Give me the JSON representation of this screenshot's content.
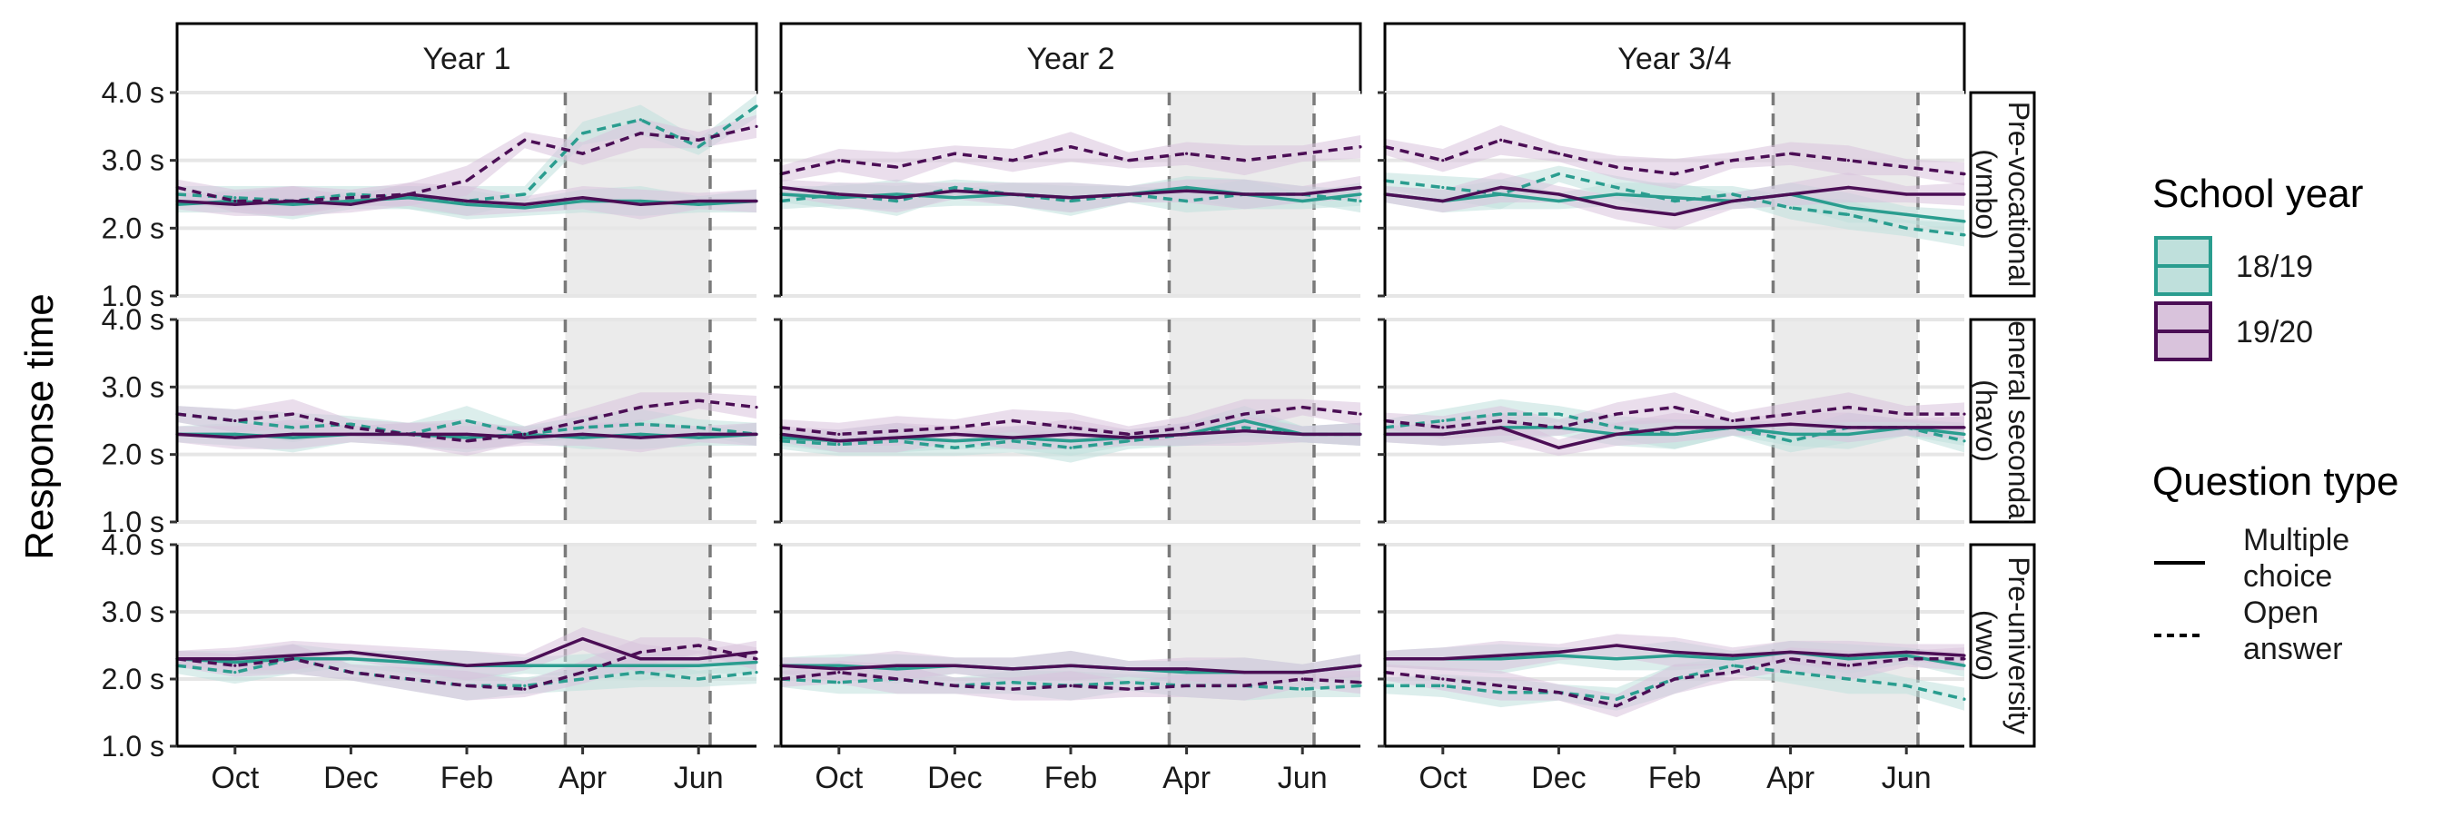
{
  "chart_data": {
    "type": "line",
    "ylabel": "Response time",
    "ylim": [
      1.0,
      4.0
    ],
    "y_ticks": [
      "1.0 s",
      "2.0 s",
      "3.0 s",
      "4.0 s"
    ],
    "x_ticks": [
      "Oct",
      "Dec",
      "Feb",
      "Apr",
      "Jun"
    ],
    "x_tick_positions": [
      1.5,
      3.5,
      5.5,
      7.5,
      9.5
    ],
    "x_domain": [
      0.5,
      10.5
    ],
    "covid_window": [
      7.2,
      9.7
    ],
    "grid": true,
    "legend_placement": "right",
    "columns": [
      "Year 1",
      "Year 2",
      "Year 3/4"
    ],
    "rows": [
      "Pre-vocational\n(vmbo)",
      "General secondary\n(havo)",
      "Pre-university\n(vwo)"
    ],
    "legend": {
      "school_year": {
        "title": "School year",
        "items": [
          {
            "label": "18/19",
            "color": "#2a9d8f"
          },
          {
            "label": "19/20",
            "color": "#4b0e55"
          }
        ]
      },
      "question_type": {
        "title": "Question type",
        "items": [
          {
            "label": "Multiple choice",
            "linestyle": "solid"
          },
          {
            "label": "Open answer",
            "linestyle": "dashed"
          }
        ]
      }
    },
    "colors": {
      "18/19": "#2a9d8f",
      "19/20": "#4b0e55",
      "band_18/19": "#bfe0dc",
      "band_19/20": "#d9c3dc",
      "shade": "#ebebeb"
    },
    "x": [
      0.5,
      1.5,
      2.5,
      3.5,
      4.5,
      5.5,
      6.5,
      7.5,
      8.5,
      9.5,
      10.5
    ],
    "panels": [
      {
        "row": 0,
        "col": 0,
        "series": [
          {
            "year": "18/19",
            "qtype": "Multiple choice",
            "values": [
              2.35,
              2.4,
              2.35,
              2.4,
              2.45,
              2.35,
              2.3,
              2.4,
              2.4,
              2.35,
              2.4
            ]
          },
          {
            "year": "18/19",
            "qtype": "Open answer",
            "values": [
              2.5,
              2.45,
              2.4,
              2.5,
              2.45,
              2.4,
              2.5,
              3.4,
              3.6,
              3.2,
              3.8
            ]
          },
          {
            "year": "19/20",
            "qtype": "Multiple choice",
            "values": [
              2.4,
              2.35,
              2.4,
              2.35,
              2.5,
              2.4,
              2.35,
              2.45,
              2.35,
              2.4,
              2.4
            ]
          },
          {
            "year": "19/20",
            "qtype": "Open answer",
            "values": [
              2.6,
              2.4,
              2.4,
              2.45,
              2.5,
              2.7,
              3.3,
              3.1,
              3.4,
              3.3,
              3.5
            ]
          }
        ]
      },
      {
        "row": 0,
        "col": 1,
        "series": [
          {
            "year": "18/19",
            "qtype": "Multiple choice",
            "values": [
              2.5,
              2.45,
              2.5,
              2.45,
              2.5,
              2.45,
              2.5,
              2.6,
              2.5,
              2.4,
              2.5
            ]
          },
          {
            "year": "18/19",
            "qtype": "Open answer",
            "values": [
              2.4,
              2.5,
              2.4,
              2.6,
              2.5,
              2.4,
              2.5,
              2.4,
              2.5,
              2.5,
              2.4
            ]
          },
          {
            "year": "19/20",
            "qtype": "Multiple choice",
            "values": [
              2.6,
              2.5,
              2.45,
              2.55,
              2.5,
              2.45,
              2.5,
              2.55,
              2.5,
              2.5,
              2.6
            ]
          },
          {
            "year": "19/20",
            "qtype": "Open answer",
            "values": [
              2.8,
              3.0,
              2.9,
              3.1,
              3.0,
              3.2,
              3.0,
              3.1,
              3.0,
              3.1,
              3.2
            ]
          }
        ]
      },
      {
        "row": 0,
        "col": 2,
        "series": [
          {
            "year": "18/19",
            "qtype": "Multiple choice",
            "values": [
              2.5,
              2.4,
              2.5,
              2.4,
              2.5,
              2.45,
              2.4,
              2.5,
              2.3,
              2.2,
              2.1
            ]
          },
          {
            "year": "18/19",
            "qtype": "Open answer",
            "values": [
              2.7,
              2.6,
              2.5,
              2.8,
              2.6,
              2.4,
              2.5,
              2.3,
              2.2,
              2.0,
              1.9
            ]
          },
          {
            "year": "19/20",
            "qtype": "Multiple choice",
            "values": [
              2.5,
              2.4,
              2.6,
              2.5,
              2.3,
              2.2,
              2.4,
              2.5,
              2.6,
              2.5,
              2.5
            ]
          },
          {
            "year": "19/20",
            "qtype": "Open answer",
            "values": [
              3.2,
              3.0,
              3.3,
              3.1,
              2.9,
              2.8,
              3.0,
              3.1,
              3.0,
              2.9,
              2.8
            ]
          }
        ]
      },
      {
        "row": 1,
        "col": 0,
        "series": [
          {
            "year": "18/19",
            "qtype": "Multiple choice",
            "values": [
              2.3,
              2.3,
              2.25,
              2.3,
              2.3,
              2.25,
              2.3,
              2.25,
              2.3,
              2.25,
              2.3
            ]
          },
          {
            "year": "18/19",
            "qtype": "Open answer",
            "values": [
              2.6,
              2.5,
              2.4,
              2.45,
              2.3,
              2.5,
              2.3,
              2.4,
              2.45,
              2.4,
              2.3
            ]
          },
          {
            "year": "19/20",
            "qtype": "Multiple choice",
            "values": [
              2.3,
              2.25,
              2.3,
              2.3,
              2.3,
              2.3,
              2.25,
              2.3,
              2.25,
              2.3,
              2.3
            ]
          },
          {
            "year": "19/20",
            "qtype": "Open answer",
            "values": [
              2.6,
              2.5,
              2.6,
              2.4,
              2.3,
              2.2,
              2.3,
              2.5,
              2.7,
              2.8,
              2.7
            ]
          }
        ]
      },
      {
        "row": 1,
        "col": 1,
        "series": [
          {
            "year": "18/19",
            "qtype": "Multiple choice",
            "values": [
              2.25,
              2.2,
              2.25,
              2.2,
              2.25,
              2.2,
              2.25,
              2.3,
              2.5,
              2.3,
              2.3
            ]
          },
          {
            "year": "18/19",
            "qtype": "Open answer",
            "values": [
              2.2,
              2.15,
              2.2,
              2.1,
              2.2,
              2.1,
              2.2,
              2.3,
              2.4,
              2.3,
              2.3
            ]
          },
          {
            "year": "19/20",
            "qtype": "Multiple choice",
            "values": [
              2.3,
              2.2,
              2.25,
              2.3,
              2.25,
              2.3,
              2.25,
              2.3,
              2.35,
              2.3,
              2.3
            ]
          },
          {
            "year": "19/20",
            "qtype": "Open answer",
            "values": [
              2.4,
              2.3,
              2.35,
              2.4,
              2.5,
              2.4,
              2.3,
              2.4,
              2.6,
              2.7,
              2.6
            ]
          }
        ]
      },
      {
        "row": 1,
        "col": 2,
        "series": [
          {
            "year": "18/19",
            "qtype": "Multiple choice",
            "values": [
              2.3,
              2.3,
              2.4,
              2.4,
              2.3,
              2.3,
              2.4,
              2.3,
              2.3,
              2.4,
              2.3
            ]
          },
          {
            "year": "18/19",
            "qtype": "Open answer",
            "values": [
              2.4,
              2.5,
              2.6,
              2.6,
              2.4,
              2.3,
              2.4,
              2.2,
              2.4,
              2.4,
              2.2
            ]
          },
          {
            "year": "19/20",
            "qtype": "Multiple choice",
            "values": [
              2.3,
              2.3,
              2.4,
              2.1,
              2.3,
              2.4,
              2.4,
              2.45,
              2.4,
              2.4,
              2.4
            ]
          },
          {
            "year": "19/20",
            "qtype": "Open answer",
            "values": [
              2.5,
              2.4,
              2.5,
              2.4,
              2.6,
              2.7,
              2.5,
              2.6,
              2.7,
              2.6,
              2.6
            ]
          }
        ]
      },
      {
        "row": 2,
        "col": 0,
        "series": [
          {
            "year": "18/19",
            "qtype": "Multiple choice",
            "values": [
              2.3,
              2.25,
              2.3,
              2.3,
              2.25,
              2.2,
              2.2,
              2.2,
              2.2,
              2.2,
              2.25
            ]
          },
          {
            "year": "18/19",
            "qtype": "Open answer",
            "values": [
              2.2,
              2.1,
              2.3,
              2.1,
              2.0,
              1.9,
              1.9,
              2.0,
              2.1,
              2.0,
              2.1
            ]
          },
          {
            "year": "19/20",
            "qtype": "Multiple choice",
            "values": [
              2.3,
              2.3,
              2.35,
              2.4,
              2.3,
              2.2,
              2.25,
              2.6,
              2.3,
              2.3,
              2.4
            ]
          },
          {
            "year": "19/20",
            "qtype": "Open answer",
            "values": [
              2.3,
              2.2,
              2.3,
              2.1,
              2.0,
              1.9,
              1.85,
              2.1,
              2.4,
              2.5,
              2.3
            ]
          }
        ]
      },
      {
        "row": 2,
        "col": 1,
        "series": [
          {
            "year": "18/19",
            "qtype": "Multiple choice",
            "values": [
              2.2,
              2.2,
              2.15,
              2.2,
              2.15,
              2.2,
              2.15,
              2.1,
              2.1,
              2.1,
              2.2
            ]
          },
          {
            "year": "18/19",
            "qtype": "Open answer",
            "values": [
              2.0,
              1.95,
              2.0,
              1.9,
              1.95,
              1.9,
              1.95,
              1.9,
              1.9,
              1.85,
              1.9
            ]
          },
          {
            "year": "19/20",
            "qtype": "Multiple choice",
            "values": [
              2.2,
              2.15,
              2.2,
              2.2,
              2.15,
              2.2,
              2.15,
              2.15,
              2.1,
              2.1,
              2.2
            ]
          },
          {
            "year": "19/20",
            "qtype": "Open answer",
            "values": [
              2.0,
              2.1,
              2.0,
              1.9,
              1.85,
              1.9,
              1.85,
              1.9,
              1.9,
              2.0,
              1.95
            ]
          }
        ]
      },
      {
        "row": 2,
        "col": 2,
        "series": [
          {
            "year": "18/19",
            "qtype": "Multiple choice",
            "values": [
              2.3,
              2.3,
              2.3,
              2.35,
              2.3,
              2.35,
              2.3,
              2.4,
              2.3,
              2.35,
              2.2
            ]
          },
          {
            "year": "18/19",
            "qtype": "Open answer",
            "values": [
              1.9,
              1.9,
              1.8,
              1.8,
              1.7,
              2.0,
              2.2,
              2.1,
              2.0,
              1.9,
              1.7
            ]
          },
          {
            "year": "19/20",
            "qtype": "Multiple choice",
            "values": [
              2.3,
              2.3,
              2.35,
              2.4,
              2.5,
              2.4,
              2.35,
              2.4,
              2.35,
              2.4,
              2.35
            ]
          },
          {
            "year": "19/20",
            "qtype": "Open answer",
            "values": [
              2.1,
              2.0,
              1.9,
              1.8,
              1.6,
              2.0,
              2.1,
              2.3,
              2.2,
              2.3,
              2.3
            ]
          }
        ]
      }
    ]
  }
}
